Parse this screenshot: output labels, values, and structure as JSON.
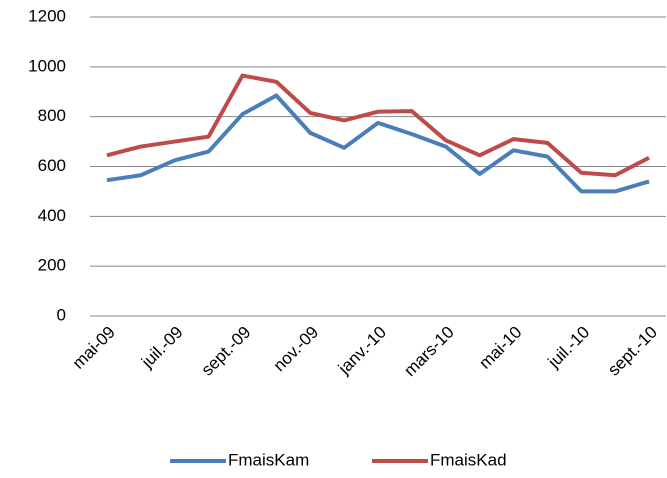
{
  "chart_data": {
    "type": "line",
    "categories": [
      "mai-09",
      null,
      "juil.-09",
      null,
      "sept.-09",
      null,
      "nov.-09",
      null,
      "janv.-10",
      null,
      "mars-10",
      null,
      "mai-10",
      null,
      "juil.-10",
      null,
      "sept.-10"
    ],
    "series": [
      {
        "name": "FmaisKam",
        "color": "#4a7ebb",
        "values": [
          545,
          565,
          625,
          660,
          810,
          885,
          735,
          675,
          775,
          730,
          680,
          570,
          665,
          640,
          500,
          500,
          540
        ]
      },
      {
        "name": "FmaisKad",
        "color": "#be4b48",
        "values": [
          645,
          680,
          700,
          720,
          965,
          940,
          815,
          785,
          820,
          822,
          705,
          645,
          710,
          695,
          575,
          565,
          635
        ]
      }
    ],
    "ylim": [
      0,
      1200
    ],
    "yticks": [
      0,
      200,
      400,
      600,
      800,
      1000,
      1200
    ],
    "grid": true,
    "legend": "bottom"
  }
}
